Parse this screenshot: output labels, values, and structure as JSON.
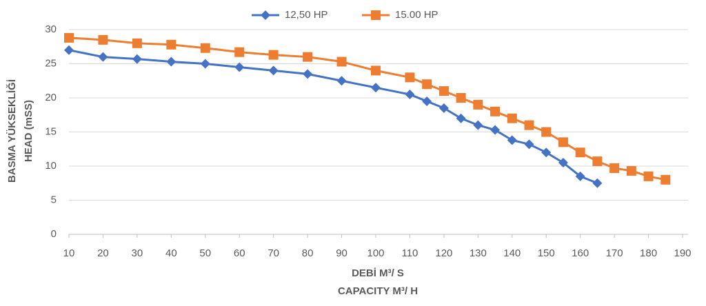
{
  "chart_data": {
    "type": "line",
    "xlabel": [
      "DEBİ M³/ S",
      "CAPACITY M³/ H"
    ],
    "ylabel": [
      "BASMA YÜKSEKLİĞİ",
      "HEAD (mSS)"
    ],
    "xlim": [
      10,
      190
    ],
    "xticks": [
      10,
      20,
      30,
      40,
      50,
      60,
      70,
      80,
      90,
      100,
      110,
      120,
      130,
      140,
      150,
      160,
      170,
      180,
      190
    ],
    "ylim": [
      0,
      30
    ],
    "yticks": [
      0,
      5,
      10,
      15,
      20,
      25,
      30
    ],
    "grid": true,
    "legend": "top",
    "series": [
      {
        "name": "12,50 HP",
        "color": "#4472c4",
        "marker": "diamond",
        "x": [
          10,
          20,
          30,
          40,
          50,
          60,
          70,
          80,
          90,
          100,
          110,
          115,
          120,
          125,
          130,
          135,
          140,
          145,
          150,
          155,
          160,
          165
        ],
        "values": [
          27,
          26,
          25.7,
          25.3,
          25,
          24.5,
          24,
          23.5,
          22.5,
          21.5,
          20.5,
          19.5,
          18.5,
          17,
          16,
          15.3,
          13.8,
          13.2,
          12,
          10.5,
          8.5,
          7.5
        ]
      },
      {
        "name": "15.00 HP",
        "color": "#ed7d31",
        "marker": "square",
        "x": [
          10,
          20,
          30,
          40,
          50,
          60,
          70,
          80,
          90,
          100,
          110,
          115,
          120,
          125,
          130,
          135,
          140,
          145,
          150,
          155,
          160,
          165,
          170,
          175,
          180,
          185
        ],
        "values": [
          28.8,
          28.5,
          28,
          27.8,
          27.3,
          26.7,
          26.3,
          26,
          25.3,
          24,
          23,
          22,
          21,
          20,
          19,
          18,
          17,
          16,
          15,
          13.5,
          12,
          10.7,
          9.7,
          9.3,
          8.5,
          8
        ]
      }
    ]
  }
}
